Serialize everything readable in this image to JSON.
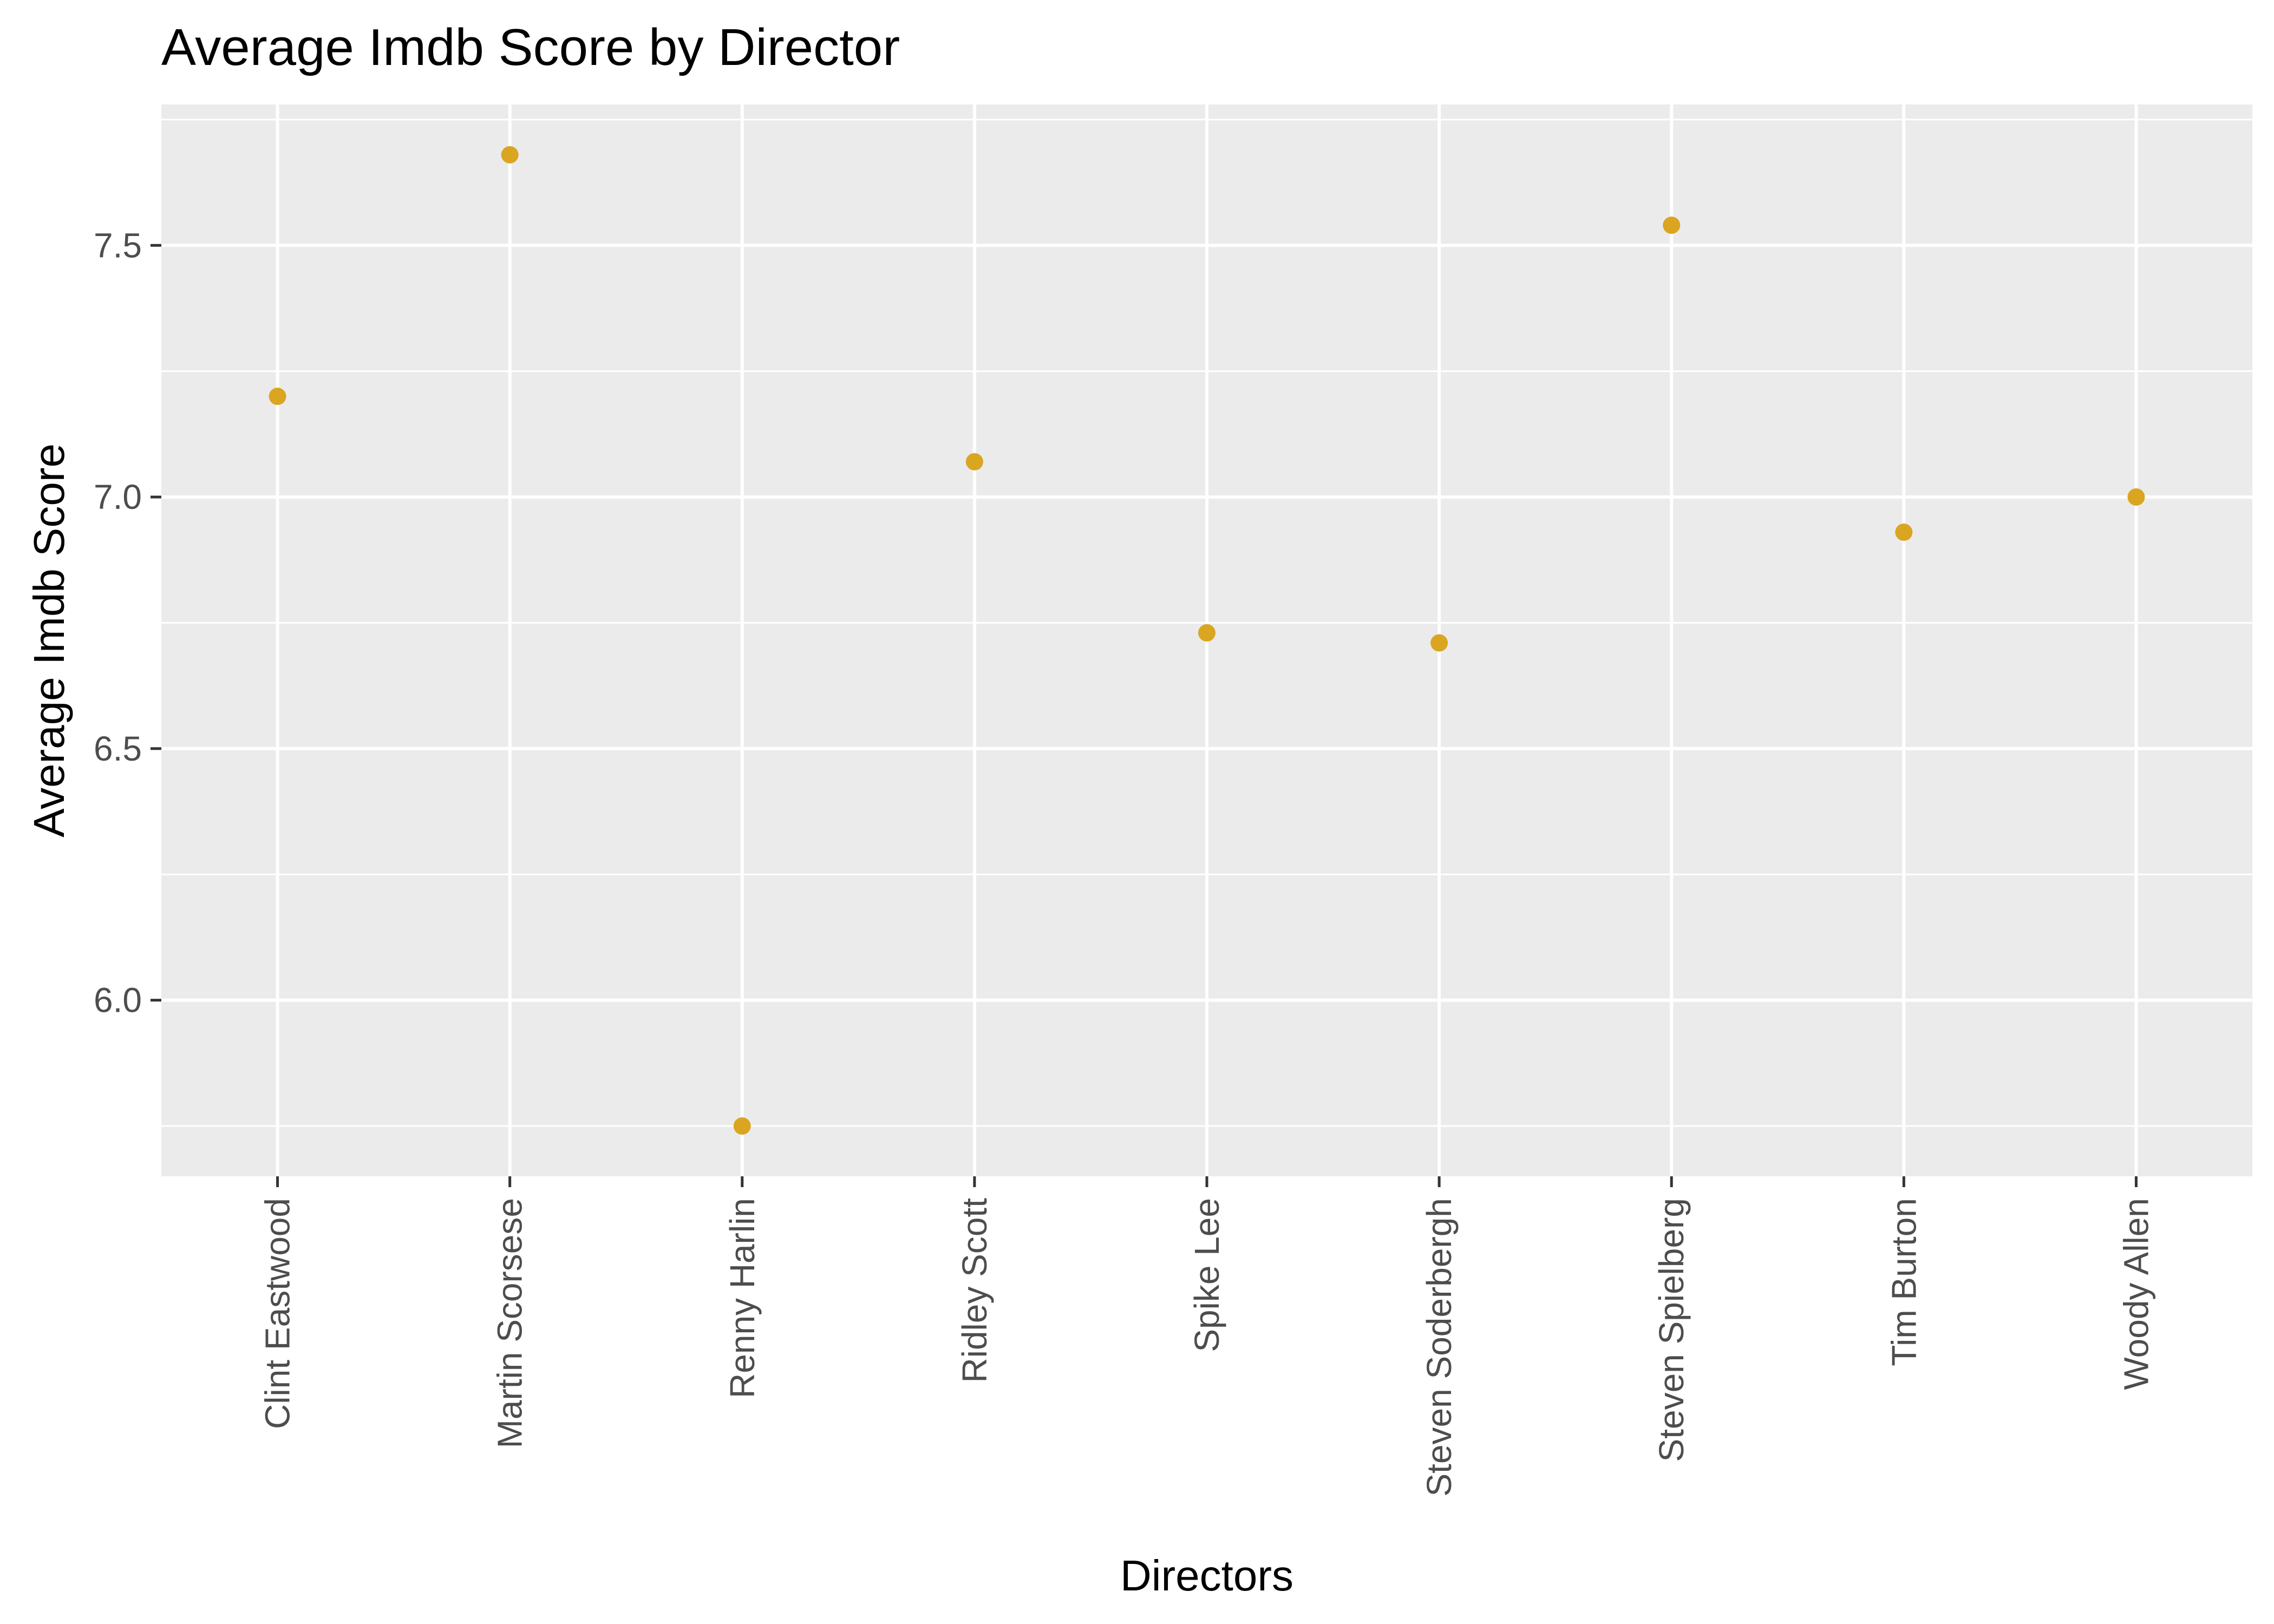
{
  "chart_data": {
    "type": "scatter",
    "title": "Average Imdb Score by Director",
    "xlabel": "Directors",
    "ylabel": "Average Imdb Score",
    "categories": [
      "Clint Eastwood",
      "Martin Scorsese",
      "Renny Harlin",
      "Ridley Scott",
      "Spike Lee",
      "Steven Soderbergh",
      "Steven Spielberg",
      "Tim Burton",
      "Woody Allen"
    ],
    "values": [
      7.2,
      7.68,
      5.75,
      7.07,
      6.73,
      6.71,
      7.54,
      6.93,
      7.0
    ],
    "ylim": [
      5.65,
      7.78
    ],
    "yticks": [
      6.0,
      6.5,
      7.0,
      7.5
    ],
    "ytick_labels": [
      "6.0",
      "6.5",
      "7.0",
      "7.5"
    ],
    "grid": true,
    "legend": "none",
    "colors": {
      "point": "#DAA520",
      "panel": "#EBEBEB",
      "grid": "#FFFFFF"
    }
  }
}
